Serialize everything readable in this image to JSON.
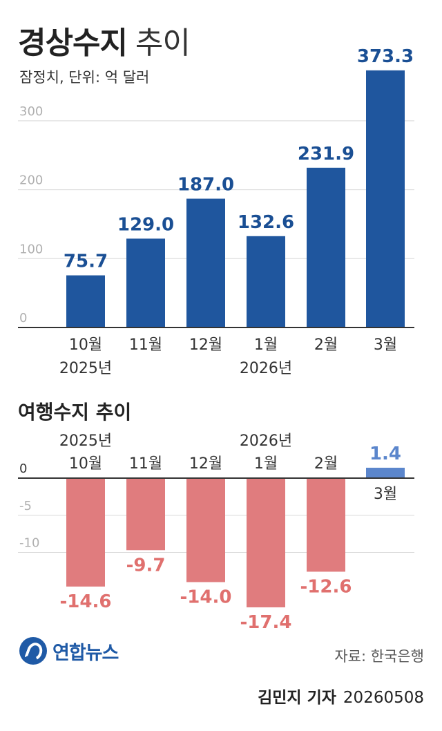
{
  "header": {
    "title_bold": "경상수지",
    "title_light": "추이",
    "subtitle": "잠정치, 단위: 억 달러"
  },
  "chart_data": [
    {
      "type": "bar",
      "title": "경상수지 추이",
      "subtitle": "잠정치, 단위: 억 달러",
      "categories": [
        "10월",
        "11월",
        "12월",
        "1월",
        "2월",
        "3월"
      ],
      "category_year_labels": [
        "2025년",
        "",
        "",
        "2026년",
        "",
        ""
      ],
      "values": [
        75.7,
        129.0,
        187.0,
        132.6,
        231.9,
        373.3
      ],
      "value_labels": [
        "75.7",
        "129.0",
        "187.0",
        "132.6",
        "231.9",
        "373.3"
      ],
      "yticks": [
        0,
        100,
        200,
        300
      ],
      "ylim": [
        0,
        373.3
      ],
      "grid": true,
      "color": "#1f569e"
    },
    {
      "type": "bar",
      "title": "여행수지 추이",
      "categories": [
        "10월",
        "11월",
        "12월",
        "1월",
        "2월",
        "3월"
      ],
      "category_year_labels": [
        "2025년",
        "",
        "",
        "2026년",
        "",
        ""
      ],
      "values": [
        -14.6,
        -9.7,
        -14.0,
        -17.4,
        -12.6,
        1.4
      ],
      "value_labels": [
        "-14.6",
        "-9.7",
        "-14.0",
        "-17.4",
        "-12.6",
        "1.4"
      ],
      "yticks": [
        0,
        -5,
        -10
      ],
      "ylim": [
        -17.4,
        1.4
      ],
      "grid": true,
      "colors": {
        "negative": "#e07c7e",
        "positive": "#5b86cc",
        "negative_label": "#e0706e",
        "positive_label": "#5b86cc"
      }
    }
  ],
  "footer": {
    "logo_text": "연합뉴스",
    "source": "자료: 한국은행",
    "reporter": "김민지 기자",
    "date": "20260508"
  }
}
